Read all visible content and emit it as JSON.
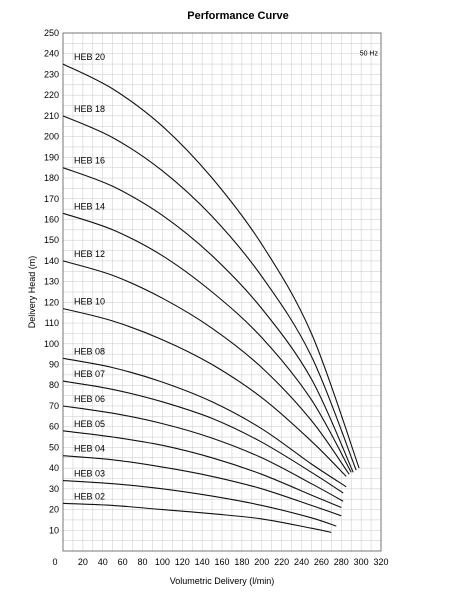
{
  "chart_data": {
    "type": "line",
    "title": "Performance Curve",
    "xlabel": "Volumetric Delivery (l/min)",
    "ylabel": "Delivery Head (m)",
    "xlim": [
      0,
      320
    ],
    "ylim": [
      0,
      250
    ],
    "xticks": [
      "0",
      "20",
      "40",
      "60",
      "80",
      "100",
      "120",
      "140",
      "160",
      "180",
      "200",
      "220",
      "240",
      "260",
      "280",
      "300",
      "320"
    ],
    "yticks": [
      "10",
      "20",
      "30",
      "40",
      "50",
      "60",
      "70",
      "80",
      "90",
      "100",
      "110",
      "120",
      "130",
      "140",
      "150",
      "160",
      "170",
      "180",
      "190",
      "200",
      "210",
      "220",
      "230",
      "240",
      "250"
    ],
    "grid": true,
    "frequency_note": "50 Hz",
    "series": [
      {
        "name": "HEB 02",
        "x": [
          0,
          50,
          100,
          150,
          200,
          250,
          270
        ],
        "y": [
          23,
          22,
          20,
          18,
          15.5,
          11,
          9
        ]
      },
      {
        "name": "HEB 03",
        "x": [
          0,
          50,
          100,
          150,
          200,
          250,
          275
        ],
        "y": [
          34,
          32.5,
          30,
          26.5,
          22,
          16,
          12
        ]
      },
      {
        "name": "HEB 04",
        "x": [
          0,
          50,
          100,
          150,
          200,
          250,
          280
        ],
        "y": [
          46,
          44,
          40.5,
          36,
          30,
          22,
          17
        ]
      },
      {
        "name": "HEB 05",
        "x": [
          0,
          50,
          100,
          150,
          200,
          250,
          280
        ],
        "y": [
          58,
          55,
          51,
          45,
          37,
          27,
          21
        ]
      },
      {
        "name": "HEB 06",
        "x": [
          0,
          50,
          100,
          150,
          200,
          250,
          282
        ],
        "y": [
          70,
          66.5,
          61.5,
          54.5,
          45,
          32.5,
          24
        ]
      },
      {
        "name": "HEB 07",
        "x": [
          0,
          50,
          100,
          150,
          200,
          250,
          282
        ],
        "y": [
          82,
          78,
          72,
          64,
          52.5,
          38,
          28
        ]
      },
      {
        "name": "HEB 08",
        "x": [
          0,
          50,
          100,
          150,
          200,
          250,
          285
        ],
        "y": [
          93,
          88.5,
          81.5,
          72,
          59,
          42,
          31
        ]
      },
      {
        "name": "HEB 10",
        "x": [
          0,
          50,
          100,
          150,
          200,
          250,
          285
        ],
        "y": [
          117,
          111,
          102,
          90,
          74,
          53,
          36
        ]
      },
      {
        "name": "HEB 12",
        "x": [
          0,
          50,
          100,
          150,
          200,
          250,
          288
        ],
        "y": [
          140,
          133,
          122,
          107.5,
          88.5,
          63,
          37
        ]
      },
      {
        "name": "HEB 14",
        "x": [
          0,
          50,
          100,
          150,
          200,
          250,
          290
        ],
        "y": [
          163,
          155,
          142.5,
          125,
          103,
          73,
          38
        ]
      },
      {
        "name": "HEB 16",
        "x": [
          0,
          50,
          100,
          150,
          200,
          250,
          292
        ],
        "y": [
          185,
          176,
          162,
          142.5,
          117,
          83,
          38
        ]
      },
      {
        "name": "HEB 18",
        "x": [
          0,
          50,
          100,
          150,
          200,
          250,
          295
        ],
        "y": [
          210,
          199.5,
          183.5,
          161.5,
          132.5,
          94,
          39
        ]
      },
      {
        "name": "HEB 20",
        "x": [
          0,
          50,
          100,
          150,
          200,
          250,
          298
        ],
        "y": [
          235,
          223,
          205,
          180,
          148,
          105,
          40
        ]
      }
    ]
  }
}
